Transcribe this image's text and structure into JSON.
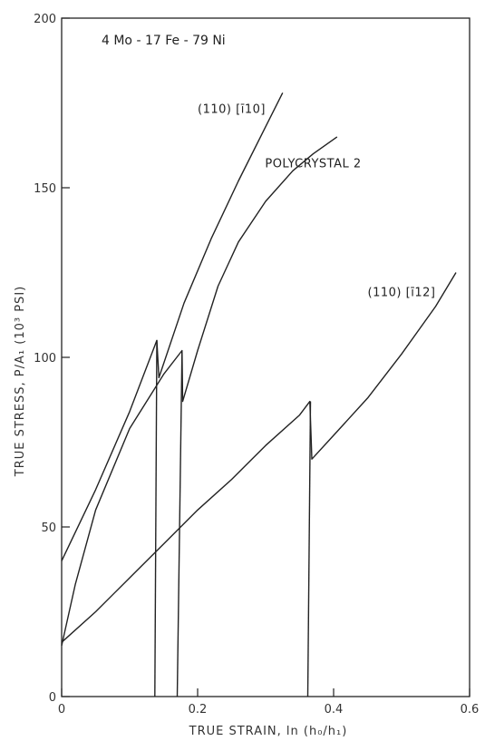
{
  "chart_data": {
    "type": "line",
    "annotation": "4 Mo - 17 Fe - 79 Ni",
    "xlabel": "TRUE STRAIN, ln (h₀/h₁)",
    "ylabel": "TRUE STRESS, P/A₁ (10³ PSI)",
    "xlim": [
      0,
      0.6
    ],
    "ylim": [
      0,
      200
    ],
    "xticks": [
      0,
      0.2,
      0.4,
      0.6
    ],
    "xtick_labels": [
      "0",
      "0.2",
      "0.4",
      "0.6"
    ],
    "yticks": [
      0,
      50,
      100,
      150,
      200
    ],
    "ytick_labels": [
      "0",
      "50",
      "100",
      "150",
      "200"
    ],
    "grid": false,
    "series": [
      {
        "name": "(110) [ī10]",
        "points": [
          [
            0.0,
            40
          ],
          [
            0.05,
            61
          ],
          [
            0.1,
            84
          ],
          [
            0.14,
            105
          ],
          [
            0.143,
            94
          ],
          [
            0.18,
            116
          ],
          [
            0.22,
            135
          ],
          [
            0.26,
            152
          ],
          [
            0.3,
            168
          ],
          [
            0.325,
            178
          ]
        ]
      },
      {
        "name": "POLYCRYSTAL 2",
        "points": [
          [
            0.0,
            15
          ],
          [
            0.02,
            33
          ],
          [
            0.05,
            55
          ],
          [
            0.1,
            79
          ],
          [
            0.15,
            95
          ],
          [
            0.177,
            102
          ],
          [
            0.178,
            87
          ],
          [
            0.2,
            102
          ],
          [
            0.23,
            121
          ],
          [
            0.26,
            134
          ],
          [
            0.3,
            146
          ],
          [
            0.34,
            155
          ],
          [
            0.37,
            160
          ],
          [
            0.405,
            165
          ]
        ]
      },
      {
        "name": "(110) [ī12]",
        "points": [
          [
            0.0,
            16
          ],
          [
            0.05,
            25
          ],
          [
            0.1,
            35
          ],
          [
            0.15,
            45
          ],
          [
            0.2,
            55
          ],
          [
            0.25,
            64
          ],
          [
            0.3,
            74
          ],
          [
            0.35,
            83
          ],
          [
            0.365,
            87
          ],
          [
            0.368,
            70
          ],
          [
            0.4,
            77
          ],
          [
            0.45,
            88
          ],
          [
            0.5,
            101
          ],
          [
            0.55,
            115
          ],
          [
            0.58,
            125
          ]
        ]
      },
      {
        "name": "",
        "points": [
          [
            0.137,
            0
          ],
          [
            0.14,
            105
          ]
        ]
      },
      {
        "name": "",
        "points": [
          [
            0.17,
            0
          ],
          [
            0.177,
            102
          ]
        ]
      },
      {
        "name": "",
        "points": [
          [
            0.362,
            0
          ],
          [
            0.366,
            87
          ]
        ]
      }
    ],
    "series_label_positions": [
      {
        "series": 0,
        "anchor_x": 0.25,
        "anchor_y": 172
      },
      {
        "series": 1,
        "anchor_x": 0.37,
        "anchor_y": 156
      },
      {
        "series": 2,
        "anchor_x": 0.5,
        "anchor_y": 118
      }
    ]
  }
}
